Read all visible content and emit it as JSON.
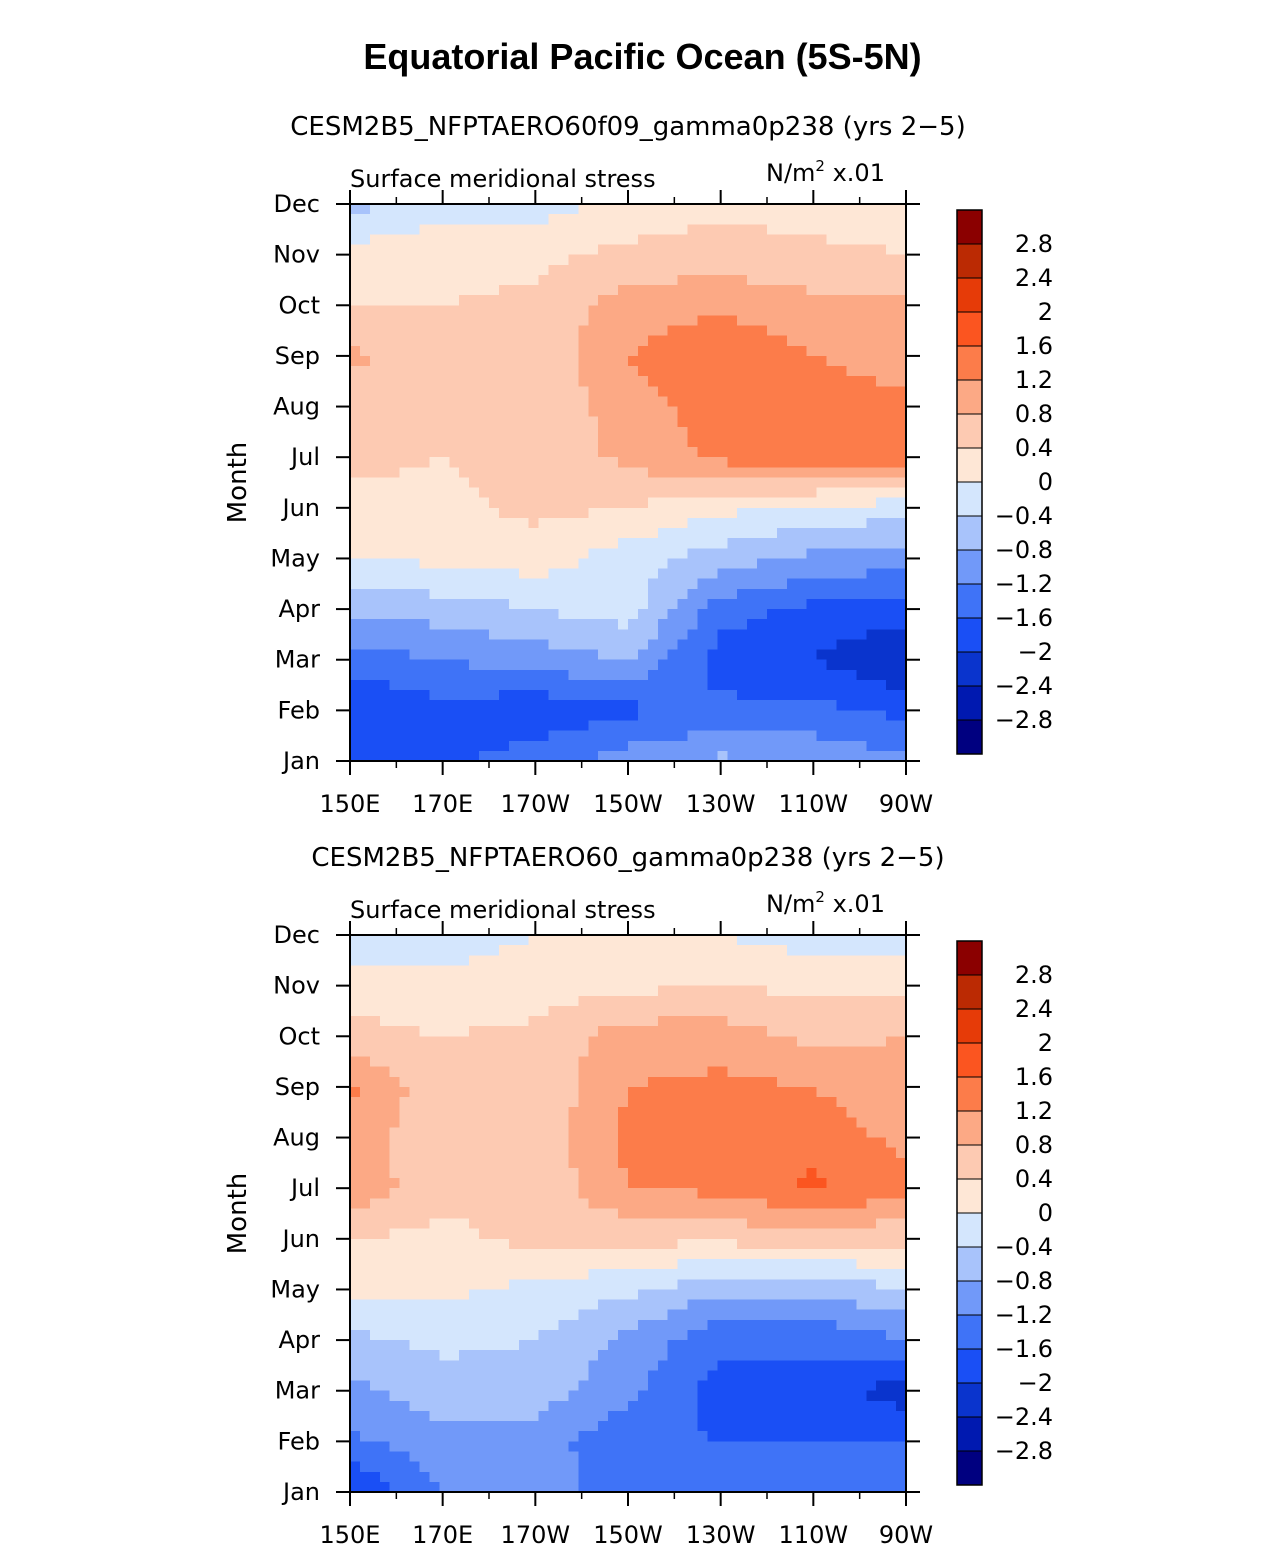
{
  "title": "Equatorial Pacific Ocean (5S-5N)",
  "colors": {
    "levels": [
      "#000080",
      "#0019b0",
      "#0a34cd",
      "#1a4ff5",
      "#3f73f7",
      "#7199f9",
      "#a8c3fb",
      "#d4e6fd",
      "#fee7d6",
      "#fdcab2",
      "#fca985",
      "#fc7c4a",
      "#fb5520",
      "#e63b08",
      "#bb2a03",
      "#8b0000"
    ]
  },
  "chart_data": [
    {
      "type": "heatmap",
      "title": "CESM2B5_NFPTAERO60f09_gamma0p238 (yrs 2−5)",
      "left_label": "Surface meridional stress",
      "right_label_units": "N/m",
      "right_label_sup": "2",
      "right_label_scale": "x.01",
      "ylabel": "Month",
      "x_ticks": [
        "150E",
        "170E",
        "170W",
        "150W",
        "130W",
        "110W",
        "90W"
      ],
      "x_lon_range": [
        150,
        270
      ],
      "y_ticks": [
        "Jan",
        "Feb",
        "Mar",
        "Apr",
        "May",
        "Jun",
        "Jul",
        "Aug",
        "Sep",
        "Oct",
        "Nov",
        "Dec"
      ],
      "colorbar_labels": [
        "2.8",
        "2.4",
        "2",
        "1.6",
        "1.2",
        "0.8",
        "0.4",
        "0",
        "−0.4",
        "−0.8",
        "−1.2",
        "−1.6",
        "−2",
        "−2.4",
        "−2.8"
      ],
      "colorbar_levels": [
        -2.8,
        -2.4,
        -2,
        -1.6,
        -1.2,
        -0.8,
        -0.4,
        0,
        0.4,
        0.8,
        1.2,
        1.6,
        2,
        2.4,
        2.8
      ],
      "grid_lons": [
        150,
        170,
        190,
        210,
        230,
        250,
        270
      ],
      "grid_rows": [
        [
          -1.8,
          -1.7,
          -1.4,
          -1.0,
          -0.7,
          -0.9,
          -1.1
        ],
        [
          -2.0,
          -1.7,
          -1.9,
          -1.7,
          -1.5,
          -1.5,
          -1.7
        ],
        [
          -1.4,
          -1.2,
          -1.0,
          -0.8,
          -1.8,
          -2.0,
          -2.4
        ],
        [
          -0.7,
          -0.6,
          -0.4,
          -0.2,
          -1.4,
          -1.7,
          -1.8
        ],
        [
          0.0,
          0.1,
          0.2,
          -0.2,
          -0.6,
          -0.9,
          -1.0
        ],
        [
          0.3,
          0.3,
          0.5,
          0.4,
          0.1,
          -0.1,
          -0.2
        ],
        [
          0.5,
          0.4,
          0.5,
          0.9,
          1.3,
          1.6,
          1.4
        ],
        [
          0.6,
          0.5,
          0.5,
          1.0,
          1.4,
          1.4,
          1.3
        ],
        [
          0.9,
          0.5,
          0.5,
          1.2,
          1.6,
          1.2,
          1.0
        ],
        [
          0.4,
          0.4,
          0.5,
          1.0,
          1.1,
          0.9,
          0.9
        ],
        [
          0.2,
          0.2,
          0.3,
          0.5,
          0.6,
          0.5,
          0.4
        ],
        [
          -0.6,
          -0.1,
          -0.2,
          0.1,
          0.3,
          0.2,
          0.2
        ]
      ]
    },
    {
      "type": "heatmap",
      "title": "CESM2B5_NFPTAERO60_gamma0p238 (yrs 2−5)",
      "left_label": "Surface meridional stress",
      "right_label_units": "N/m",
      "right_label_sup": "2",
      "right_label_scale": "x.01",
      "ylabel": "Month",
      "x_ticks": [
        "150E",
        "170E",
        "170W",
        "150W",
        "130W",
        "110W",
        "90W"
      ],
      "x_lon_range": [
        150,
        270
      ],
      "y_ticks": [
        "Jan",
        "Feb",
        "Mar",
        "Apr",
        "May",
        "Jun",
        "Jul",
        "Aug",
        "Sep",
        "Oct",
        "Nov",
        "Dec"
      ],
      "colorbar_labels": [
        "2.8",
        "2.4",
        "2",
        "1.6",
        "1.2",
        "0.8",
        "0.4",
        "0",
        "−0.4",
        "−0.8",
        "−1.2",
        "−1.6",
        "−2",
        "−2.4",
        "−2.8"
      ],
      "colorbar_levels": [
        -2.8,
        -2.4,
        -2,
        -1.6,
        -1.2,
        -0.8,
        -0.4,
        0,
        0.4,
        0.8,
        1.2,
        1.6,
        2,
        2.4,
        2.8
      ],
      "grid_lons": [
        150,
        170,
        190,
        210,
        230,
        250,
        270
      ],
      "grid_rows": [
        [
          -2.0,
          -1.2,
          -1.1,
          -1.3,
          -1.3,
          -1.5,
          -1.5
        ],
        [
          -1.3,
          -0.9,
          -1.0,
          -1.5,
          -1.6,
          -1.6,
          -1.6
        ],
        [
          -0.9,
          -0.6,
          -0.6,
          -1.1,
          -1.8,
          -1.8,
          -2.2
        ],
        [
          -0.5,
          -0.3,
          -0.4,
          -0.9,
          -1.5,
          -1.5,
          -1.2
        ],
        [
          0.2,
          0.1,
          -0.1,
          -0.3,
          -0.7,
          -0.7,
          -0.4
        ],
        [
          0.4,
          0.3,
          0.5,
          0.5,
          0.5,
          0.6,
          0.5
        ],
        [
          1.1,
          0.5,
          0.5,
          1.2,
          1.3,
          1.7,
          1.3
        ],
        [
          1.0,
          0.5,
          0.5,
          1.3,
          1.4,
          1.4,
          1.1
        ],
        [
          1.3,
          0.5,
          0.5,
          1.2,
          1.3,
          1.2,
          0.9
        ],
        [
          0.5,
          0.4,
          0.5,
          1.0,
          1.0,
          0.7,
          0.8
        ],
        [
          0.3,
          0.1,
          0.2,
          0.3,
          0.4,
          0.3,
          0.3
        ],
        [
          -0.3,
          -0.2,
          0.0,
          0.0,
          0.0,
          -0.2,
          -0.2
        ]
      ]
    }
  ]
}
